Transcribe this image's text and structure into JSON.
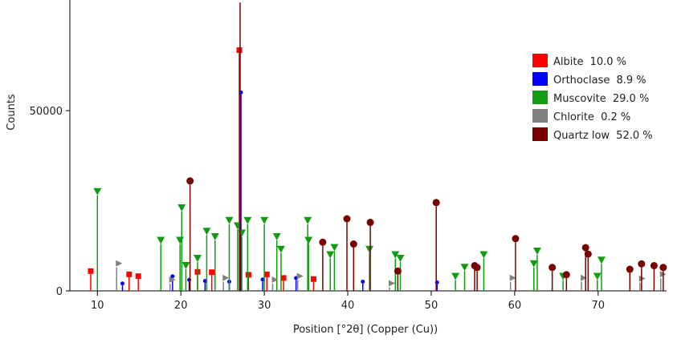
{
  "chart_data": {
    "type": "stick",
    "x_label": "Position [°2θ] (Copper (Cu))",
    "y_label": "Counts",
    "xlim": [
      6.7,
      78.2
    ],
    "ylim": [
      0,
      80700
    ],
    "xticks": [
      10,
      20,
      30,
      40,
      50,
      60,
      70
    ],
    "yticks": [
      0,
      50000
    ],
    "legend": "upper right",
    "series": [
      {
        "name": "Albite",
        "fraction": 10.0,
        "fraction_label": "10.0 %",
        "color": "#ff0000",
        "marker": "square",
        "x": [
          9.2,
          13.8,
          14.9,
          22.0,
          23.7,
          27.0,
          28.1,
          30.3,
          32.3,
          35.9
        ],
        "values": [
          4700,
          3800,
          3300,
          4500,
          4400,
          66000,
          3700,
          3800,
          2800,
          2500
        ]
      },
      {
        "name": "Orthoclase",
        "fraction": 8.9,
        "fraction_label": "8.9 %",
        "color": "#0000ff",
        "marker": "small-circle",
        "x": [
          13.0,
          19.0,
          21.0,
          22.9,
          25.8,
          27.2,
          29.8,
          33.8,
          41.8,
          50.7
        ],
        "values": [
          1500,
          3500,
          2500,
          2200,
          2000,
          54500,
          2600,
          3000,
          2000,
          1800
        ]
      },
      {
        "name": "Muscovite",
        "fraction": 29.0,
        "fraction_label": "29.0 %",
        "color": "#119c11",
        "marker": "triangle-down",
        "x": [
          10.0,
          17.6,
          19.9,
          20.1,
          20.6,
          22.0,
          23.1,
          24.1,
          25.8,
          26.8,
          27.3,
          28.0,
          30.0,
          31.5,
          32.0,
          35.2,
          35.3,
          37.9,
          38.4,
          42.6,
          45.7,
          46.3,
          52.9,
          54.0,
          56.3,
          62.3,
          62.7,
          65.8,
          69.9,
          70.4
        ],
        "values": [
          26500,
          13000,
          13000,
          22000,
          6000,
          8000,
          15500,
          14000,
          18500,
          17000,
          15000,
          18500,
          18500,
          14000,
          10500,
          18500,
          13000,
          9000,
          11000,
          10500,
          9000,
          8000,
          3000,
          5500,
          9000,
          6500,
          10000,
          3000,
          3000,
          7500
        ]
      },
      {
        "name": "Chlorite",
        "fraction": 0.2,
        "fraction_label": "0.2 %",
        "color": "#808080",
        "marker": "triangle-right",
        "x": [
          12.3,
          18.7,
          25.1,
          31.0,
          34.0,
          45.0,
          59.5,
          68.0,
          75.0,
          77.5
        ],
        "values": [
          6500,
          2000,
          2500,
          2000,
          3000,
          1000,
          2500,
          2500,
          2300,
          3500
        ]
      },
      {
        "name": "Quartz low",
        "fraction": 52.0,
        "fraction_label": "52.0 %",
        "color": "#7a0000",
        "marker": "circle",
        "x": [
          21.1,
          27.1,
          37.0,
          39.9,
          40.7,
          42.7,
          46.0,
          50.6,
          55.2,
          55.5,
          60.1,
          64.5,
          66.2,
          68.5,
          68.8,
          73.8,
          75.2,
          76.7,
          77.8
        ],
        "values": [
          29500,
          80000,
          12500,
          19000,
          12000,
          18000,
          4500,
          23500,
          6000,
          5500,
          13500,
          5500,
          3500,
          11000,
          9200,
          5000,
          6500,
          6000,
          5500
        ]
      }
    ]
  }
}
